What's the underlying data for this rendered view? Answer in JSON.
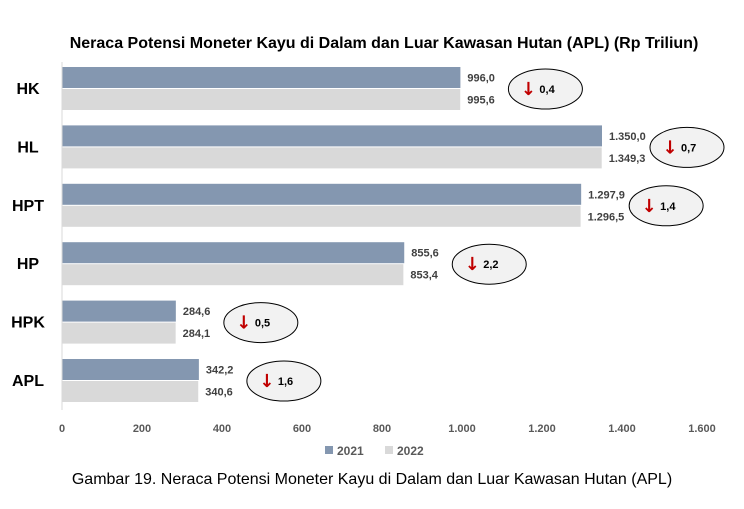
{
  "chart_data": {
    "type": "bar",
    "orientation": "horizontal",
    "title": "Neraca Potensi Moneter Kayu di Dalam dan Luar Kawasan Hutan (APL) (Rp Triliun)",
    "categories": [
      "HK",
      "HL",
      "HPT",
      "HP",
      "HPK",
      "APL"
    ],
    "series": [
      {
        "name": "2021",
        "values": [
          996.0,
          1350.0,
          1297.9,
          855.6,
          284.6,
          342.2
        ],
        "labels": [
          "996,0",
          "1.350,0",
          "1.297,9",
          "855,6",
          "284,6",
          "342,2"
        ],
        "color": "#8497b0"
      },
      {
        "name": "2022",
        "values": [
          995.6,
          1349.3,
          1296.5,
          853.4,
          284.1,
          340.6
        ],
        "labels": [
          "995,6",
          "1.349,3",
          "1.296,5",
          "853,4",
          "284,1",
          "340,6"
        ],
        "color": "#d9d9d9"
      }
    ],
    "decrease": {
      "values": [
        0.4,
        0.7,
        1.4,
        2.2,
        0.5,
        1.6
      ],
      "labels": [
        "0,4",
        "0,7",
        "1,4",
        "2,2",
        "0,5",
        "1,6"
      ],
      "arrow_color": "#c00000",
      "arrow_glyph": "↓"
    },
    "xlim": [
      0,
      1600
    ],
    "xticks": [
      0,
      200,
      400,
      600,
      800,
      1000,
      1200,
      1400,
      1600
    ],
    "xtick_labels": [
      "0",
      "200",
      "400",
      "600",
      "800",
      "1.000",
      "1.200",
      "1.400",
      "1.600"
    ],
    "grid": false,
    "legend_position": "bottom"
  },
  "caption": "Gambar 19. Neraca Potensi Moneter Kayu di Dalam dan Luar Kawasan Hutan (APL)"
}
